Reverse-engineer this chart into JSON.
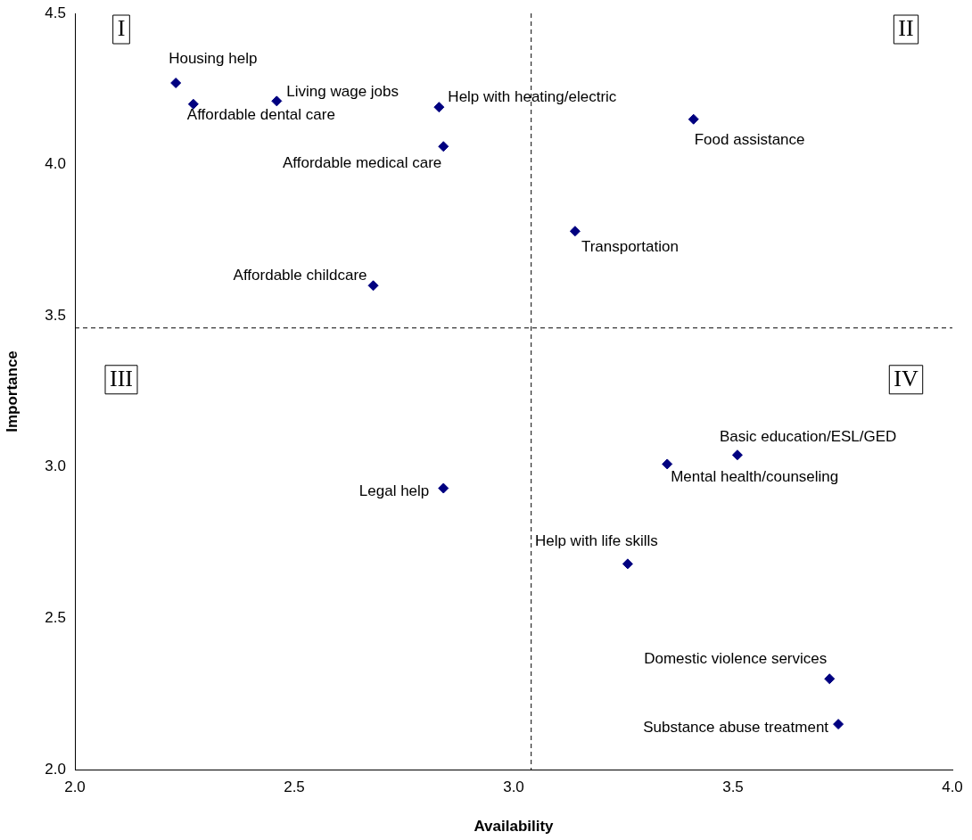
{
  "chart_data": {
    "type": "scatter",
    "xlabel": "Availability",
    "ylabel": "Importance",
    "series": [
      {
        "color": "#000080",
        "x": [
          2.23,
          2.27,
          2.46,
          2.83,
          2.84,
          3.41,
          3.14,
          2.68,
          2.84,
          3.51,
          3.35,
          3.26,
          3.72,
          3.74
        ],
        "values": [
          4.27,
          4.2,
          4.21,
          4.19,
          4.06,
          4.15,
          3.78,
          3.6,
          2.93,
          3.04,
          3.01,
          2.68,
          2.3,
          2.15
        ]
      }
    ],
    "marker": "diamond",
    "legend": false,
    "grid": false,
    "xlim": [
      2,
      4
    ],
    "ylim": [
      2,
      4.5
    ],
    "xticks": [
      {
        "value": 2,
        "label": "2.0"
      },
      2.5,
      {
        "value": 3,
        "label": "3.0"
      },
      3.5,
      {
        "value": 4,
        "label": "4.0"
      }
    ],
    "yticks": [
      {
        "value": 2,
        "label": "2.0"
      },
      2.5,
      {
        "value": 3,
        "label": "3.0"
      },
      3.5,
      {
        "value": 4,
        "label": "4.0"
      },
      4.5
    ],
    "ref_lines": [
      {
        "axis": "x",
        "value": 3.04,
        "line_style": "dashed",
        "color": "#000000"
      },
      {
        "axis": "y",
        "value": 3.46,
        "line_style": "dashed",
        "color": "#000000"
      }
    ],
    "annotations": [
      {
        "text": "Housing help",
        "x": 2.23,
        "y": 4.27
      },
      {
        "text": "Affordable dental care",
        "x": 2.27,
        "y": 4.2
      },
      {
        "text": "Living wage jobs",
        "x": 2.46,
        "y": 4.21
      },
      {
        "text": "Help with heating/electric",
        "x": 2.83,
        "y": 4.19
      },
      {
        "text": "Affordable medical care",
        "x": 2.84,
        "y": 4.06
      },
      {
        "text": "Food assistance",
        "x": 3.41,
        "y": 4.15
      },
      {
        "text": "Transportation",
        "x": 3.14,
        "y": 3.78
      },
      {
        "text": "Affordable childcare",
        "x": 2.68,
        "y": 3.6
      },
      {
        "text": "Legal help",
        "x": 2.84,
        "y": 2.93
      },
      {
        "text": "Basic education/ESL/GED",
        "x": 3.51,
        "y": 3.04
      },
      {
        "text": "Mental health/counseling",
        "x": 3.35,
        "y": 3.01
      },
      {
        "text": "Help with life skills",
        "x": 3.26,
        "y": 2.68
      },
      {
        "text": "Domestic violence services",
        "x": 3.72,
        "y": 2.3
      },
      {
        "text": "Substance abuse treatment",
        "x": 3.74,
        "y": 2.15
      },
      "I",
      "II",
      "III",
      "IV"
    ]
  }
}
